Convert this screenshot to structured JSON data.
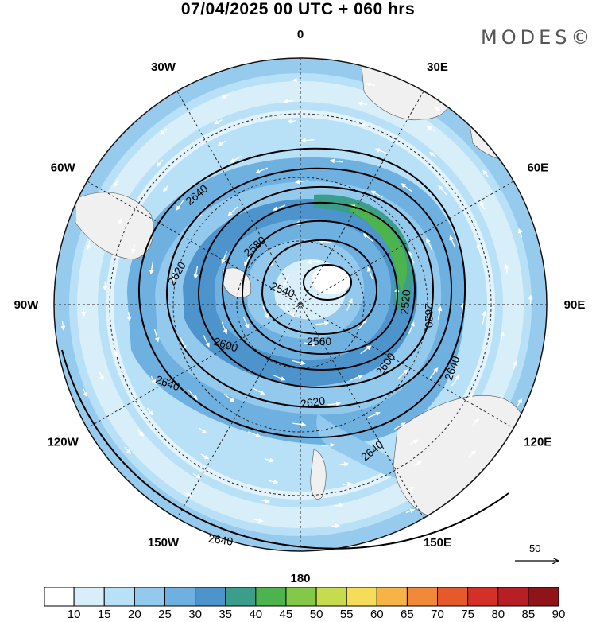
{
  "title": "07/04/2025  00 UTC  + 060 hrs",
  "brand": "MODES©",
  "longitude_labels": [
    {
      "lon": 0,
      "text": "0"
    },
    {
      "lon": 30,
      "text": "30E"
    },
    {
      "lon": 60,
      "text": "60E"
    },
    {
      "lon": 90,
      "text": "90E"
    },
    {
      "lon": 120,
      "text": "120E"
    },
    {
      "lon": 150,
      "text": "150E"
    },
    {
      "lon": 180,
      "text": "180"
    },
    {
      "lon": -150,
      "text": "150W"
    },
    {
      "lon": -120,
      "text": "120W"
    },
    {
      "lon": -90,
      "text": "90W"
    },
    {
      "lon": -60,
      "text": "60W"
    },
    {
      "lon": -30,
      "text": "30W"
    }
  ],
  "contour_labels": [
    "2540",
    "2560",
    "2580",
    "2600",
    "2620",
    "2640",
    "2640",
    "2640",
    "2640",
    "2640",
    "2600",
    "2620",
    "2620",
    "2580",
    "2600",
    "2520"
  ],
  "reference_vector": {
    "value": "50"
  },
  "colorbar": {
    "levels": [
      "10",
      "15",
      "20",
      "25",
      "30",
      "35",
      "40",
      "45",
      "50",
      "55",
      "60",
      "65",
      "70",
      "75",
      "80",
      "85",
      "90"
    ],
    "colors": [
      "#ffffff",
      "#d8effa",
      "#b8e0f6",
      "#92c9ec",
      "#6eb0e0",
      "#4d93cc",
      "#3a9e8a",
      "#4cb34f",
      "#84c84a",
      "#c6dc4e",
      "#f5dd5a",
      "#f6b447",
      "#f08a3a",
      "#e55a2b",
      "#d4302a",
      "#b81e25",
      "#8f1418"
    ]
  }
}
